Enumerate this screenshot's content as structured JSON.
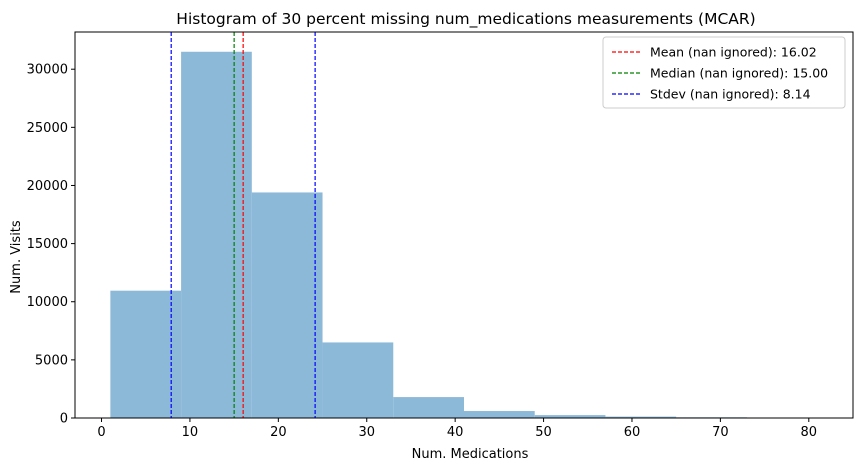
{
  "chart_data": {
    "type": "bar",
    "title": "Histogram of 30 percent missing num_medications measurements (MCAR)",
    "xlabel": "Num. Medications",
    "ylabel": "Num. Visits",
    "xlim": [
      -3.0,
      85.0
    ],
    "ylim": [
      0,
      33200
    ],
    "xticks": [
      0,
      10,
      20,
      30,
      40,
      50,
      60,
      70,
      80
    ],
    "yticks": [
      0,
      5000,
      10000,
      15000,
      20000,
      25000,
      30000
    ],
    "bar_color": "#8db9d8",
    "bins": [
      {
        "x0": 1,
        "x1": 9,
        "count": 10950
      },
      {
        "x0": 9,
        "x1": 17,
        "count": 31500
      },
      {
        "x0": 17,
        "x1": 25,
        "count": 19400
      },
      {
        "x0": 25,
        "x1": 33,
        "count": 6500
      },
      {
        "x0": 33,
        "x1": 41,
        "count": 1800
      },
      {
        "x0": 41,
        "x1": 49,
        "count": 600
      },
      {
        "x0": 49,
        "x1": 57,
        "count": 250
      },
      {
        "x0": 57,
        "x1": 65,
        "count": 120
      },
      {
        "x0": 65,
        "x1": 73,
        "count": 60
      },
      {
        "x0": 73,
        "x1": 81,
        "count": 20
      }
    ],
    "vlines": [
      {
        "x": 16.02,
        "color": "#ff0000",
        "label": "Mean (nan ignored): 16.02"
      },
      {
        "x": 15.0,
        "color": "#008000",
        "label": "Median (nan ignored): 15.00"
      },
      {
        "x": 7.88,
        "color": "#0000ff",
        "label": "Stdev (nan ignored): 8.14"
      },
      {
        "x": 24.16,
        "color": "#0000ff",
        "label": ""
      }
    ],
    "legend": {
      "position": "top-right",
      "entries": [
        {
          "label": "Mean (nan ignored): 16.02",
          "color": "#ff0000"
        },
        {
          "label": "Median (nan ignored): 15.00",
          "color": "#008000"
        },
        {
          "label": "Stdev (nan ignored): 8.14",
          "color": "#0000ff"
        }
      ]
    },
    "grid": false
  }
}
